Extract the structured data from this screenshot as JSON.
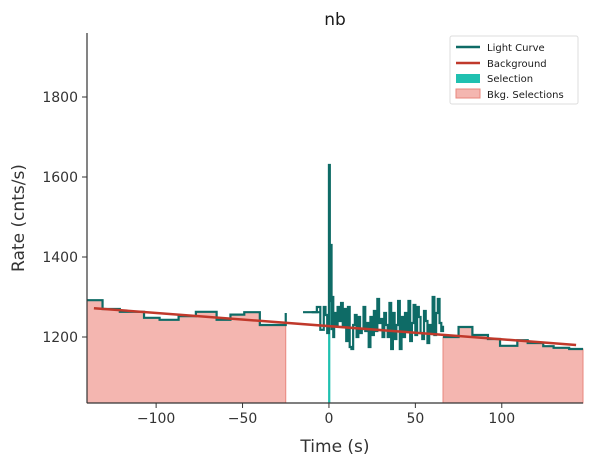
{
  "chart_data": {
    "type": "line",
    "title": "nb",
    "xlabel": "Time (s)",
    "ylabel": "Rate (cnts/s)",
    "xlim": [
      -140,
      147
    ],
    "ylim": [
      1035,
      1960
    ],
    "xticks": [
      -100,
      -50,
      0,
      50,
      100
    ],
    "yticks": [
      1200,
      1400,
      1600,
      1800
    ],
    "xtick_labels": [
      "−100",
      "−50",
      "0",
      "50",
      "100"
    ],
    "ytick_labels": [
      "1200",
      "1400",
      "1600",
      "1800"
    ],
    "grid": false,
    "legend_position": "top-right",
    "colors": {
      "light_curve": "#0e6b66",
      "background": "#c0392b",
      "selection": "#20c0b0",
      "bkg_selection_fill": "#f4b6b0",
      "bkg_selection_edge": "#e8877e"
    },
    "series": [
      {
        "name": "Light Curve",
        "style": "step",
        "segments": [
          {
            "x": [
              -140,
              -131,
              -121,
              -107,
              -98,
              -87,
              -77,
              -65,
              -57,
              -49,
              -40,
              -25
            ],
            "y": [
              1292,
              1270,
              1263,
              1248,
              1243,
              1252,
              1263,
              1243,
              1256,
              1262,
              1230,
              1260
            ]
          },
          {
            "x": [
              -15,
              -5
            ],
            "y": [
              1262,
              1262
            ]
          },
          {
            "x": [
              -10,
              -7,
              -5,
              -3,
              -2,
              -1,
              0,
              0.5,
              1,
              1.5,
              2,
              2.5,
              3,
              4,
              5,
              6,
              7,
              8,
              9,
              10,
              11,
              12,
              13,
              14,
              15,
              16,
              17,
              18,
              19,
              20,
              21,
              22,
              23,
              24,
              25,
              26,
              27,
              28,
              29,
              30,
              31,
              32,
              33,
              34,
              35,
              36,
              37,
              38,
              39,
              40,
              41,
              42,
              43,
              44,
              45,
              46,
              47,
              48,
              49,
              50,
              51,
              52,
              53,
              54,
              55,
              56,
              57,
              58,
              59,
              60,
              61,
              62,
              63,
              64,
              65,
              66
            ],
            "y": [
              1262,
              1275,
              1218,
              1275,
              1255,
              1210,
              1630,
              1290,
              1430,
              1220,
              1300,
              1200,
              1260,
              1230,
              1275,
              1240,
              1285,
              1225,
              1270,
              1190,
              1275,
              1175,
              1170,
              1230,
              1255,
              1200,
              1250,
              1210,
              1220,
              1275,
              1215,
              1235,
              1175,
              1250,
              1205,
              1265,
              1215,
              1295,
              1235,
              1245,
              1200,
              1260,
              1230,
              1200,
              1285,
              1170,
              1260,
              1195,
              1230,
              1290,
              1170,
              1250,
              1200,
              1260,
              1215,
              1290,
              1190,
              1235,
              1280,
              1205,
              1275,
              1250,
              1210,
              1195,
              1265,
              1240,
              1185,
              1230,
              1210,
              1300,
              1205,
              1260,
              1295,
              1235,
              1215,
              1228
            ]
          },
          {
            "x": [
              66,
              75,
              83,
              92,
              99,
              109,
              115,
              124,
              130,
              139,
              147
            ],
            "y": [
              1200,
              1225,
              1205,
              1195,
              1178,
              1192,
              1185,
              1177,
              1173,
              1170,
              1170
            ]
          }
        ]
      },
      {
        "name": "Background",
        "style": "line",
        "x": [
          -136,
          143
        ],
        "y": [
          1272,
          1180
        ]
      },
      {
        "name": "Selection",
        "style": "fill",
        "x": [
          -0.5,
          0.8
        ],
        "y_top": [
          1630,
          1430
        ]
      },
      {
        "name": "Bkg. Selections",
        "style": "fill",
        "ranges": [
          {
            "x": [
              -140,
              -131,
              -121,
              -107,
              -98,
              -87,
              -77,
              -65,
              -57,
              -49,
              -40,
              -25
            ],
            "y": [
              1292,
              1270,
              1263,
              1248,
              1243,
              1252,
              1263,
              1243,
              1256,
              1262,
              1230,
              1260
            ]
          },
          {
            "x": [
              66,
              75,
              83,
              92,
              99,
              109,
              115,
              124,
              130,
              139,
              147
            ],
            "y": [
              1200,
              1225,
              1205,
              1195,
              1178,
              1192,
              1185,
              1177,
              1173,
              1170,
              1170
            ]
          }
        ]
      }
    ]
  }
}
